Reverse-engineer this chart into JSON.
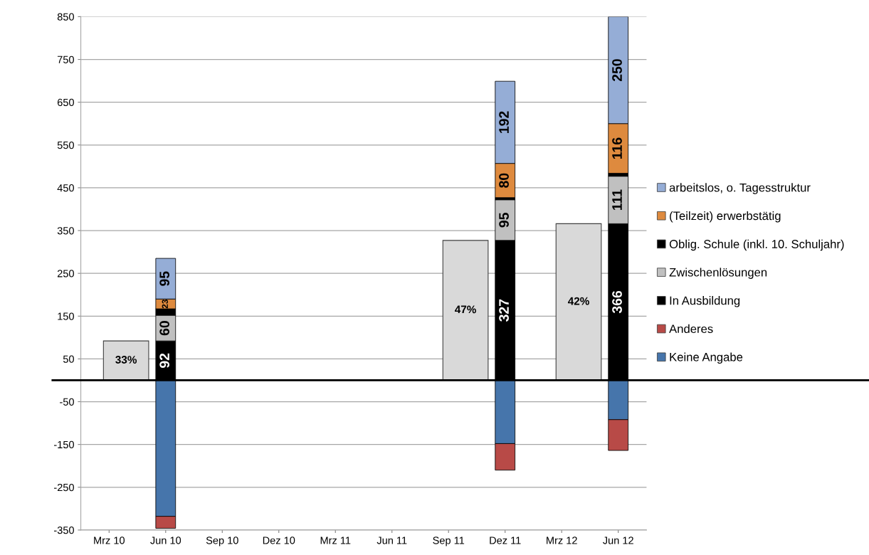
{
  "chart_data": {
    "type": "bar",
    "stacked": true,
    "categories": [
      "Mrz 10",
      "Jun 10",
      "Sep 10",
      "Dez 10",
      "Mrz 11",
      "Jun 11",
      "Sep 11",
      "Dez 11",
      "Mrz 12",
      "Jun 12"
    ],
    "ylim": [
      -350,
      850
    ],
    "yticks": [
      -350,
      -250,
      -150,
      -50,
      50,
      150,
      250,
      350,
      450,
      550,
      650,
      750,
      850
    ],
    "grid": "y",
    "legend": "right",
    "annotations": [
      "33%",
      "47%",
      "42%"
    ],
    "series": [
      {
        "color": "#d9d9d9",
        "values": [
          92,
          null,
          null,
          null,
          null,
          null,
          327,
          null,
          366,
          null
        ]
      },
      {
        "name": "Keine Angabe",
        "color": "#4675ab",
        "values": [
          null,
          -318,
          null,
          null,
          null,
          null,
          null,
          -148,
          null,
          -92
        ]
      },
      {
        "name": "Anderes",
        "color": "#b84a47",
        "values": [
          null,
          -28,
          null,
          null,
          null,
          null,
          null,
          -62,
          null,
          -72
        ]
      },
      {
        "name": "In Ausbildung",
        "color": "#000000",
        "values": [
          null,
          92,
          null,
          null,
          null,
          null,
          null,
          327,
          null,
          366
        ],
        "value_labels": [
          null,
          "92",
          null,
          null,
          null,
          null,
          null,
          "327",
          null,
          "366"
        ]
      },
      {
        "name": "Zwischenlösungen",
        "color": "#c0c0c0",
        "values": [
          null,
          60,
          null,
          null,
          null,
          null,
          null,
          95,
          null,
          111
        ],
        "value_labels": [
          null,
          "60",
          null,
          null,
          null,
          null,
          null,
          "95",
          null,
          "111"
        ]
      },
      {
        "name": "Oblig. Schule (inkl. 10. Schuljahr)",
        "color": "#000000",
        "values": [
          null,
          15,
          null,
          null,
          null,
          null,
          null,
          5,
          null,
          7
        ]
      },
      {
        "name": "(Teilzeit) erwerbstätig",
        "color": "#de8a3e",
        "values": [
          null,
          23,
          null,
          null,
          null,
          null,
          null,
          80,
          null,
          116
        ],
        "value_labels": [
          null,
          "23",
          null,
          null,
          null,
          null,
          null,
          "80",
          null,
          "116"
        ]
      },
      {
        "name": "arbeitslos, o. Tagesstruktur",
        "color": "#95add6",
        "values": [
          null,
          95,
          null,
          null,
          null,
          null,
          null,
          192,
          null,
          250
        ],
        "value_labels": [
          null,
          "95",
          null,
          null,
          null,
          null,
          null,
          "192",
          null,
          "250"
        ]
      }
    ]
  }
}
